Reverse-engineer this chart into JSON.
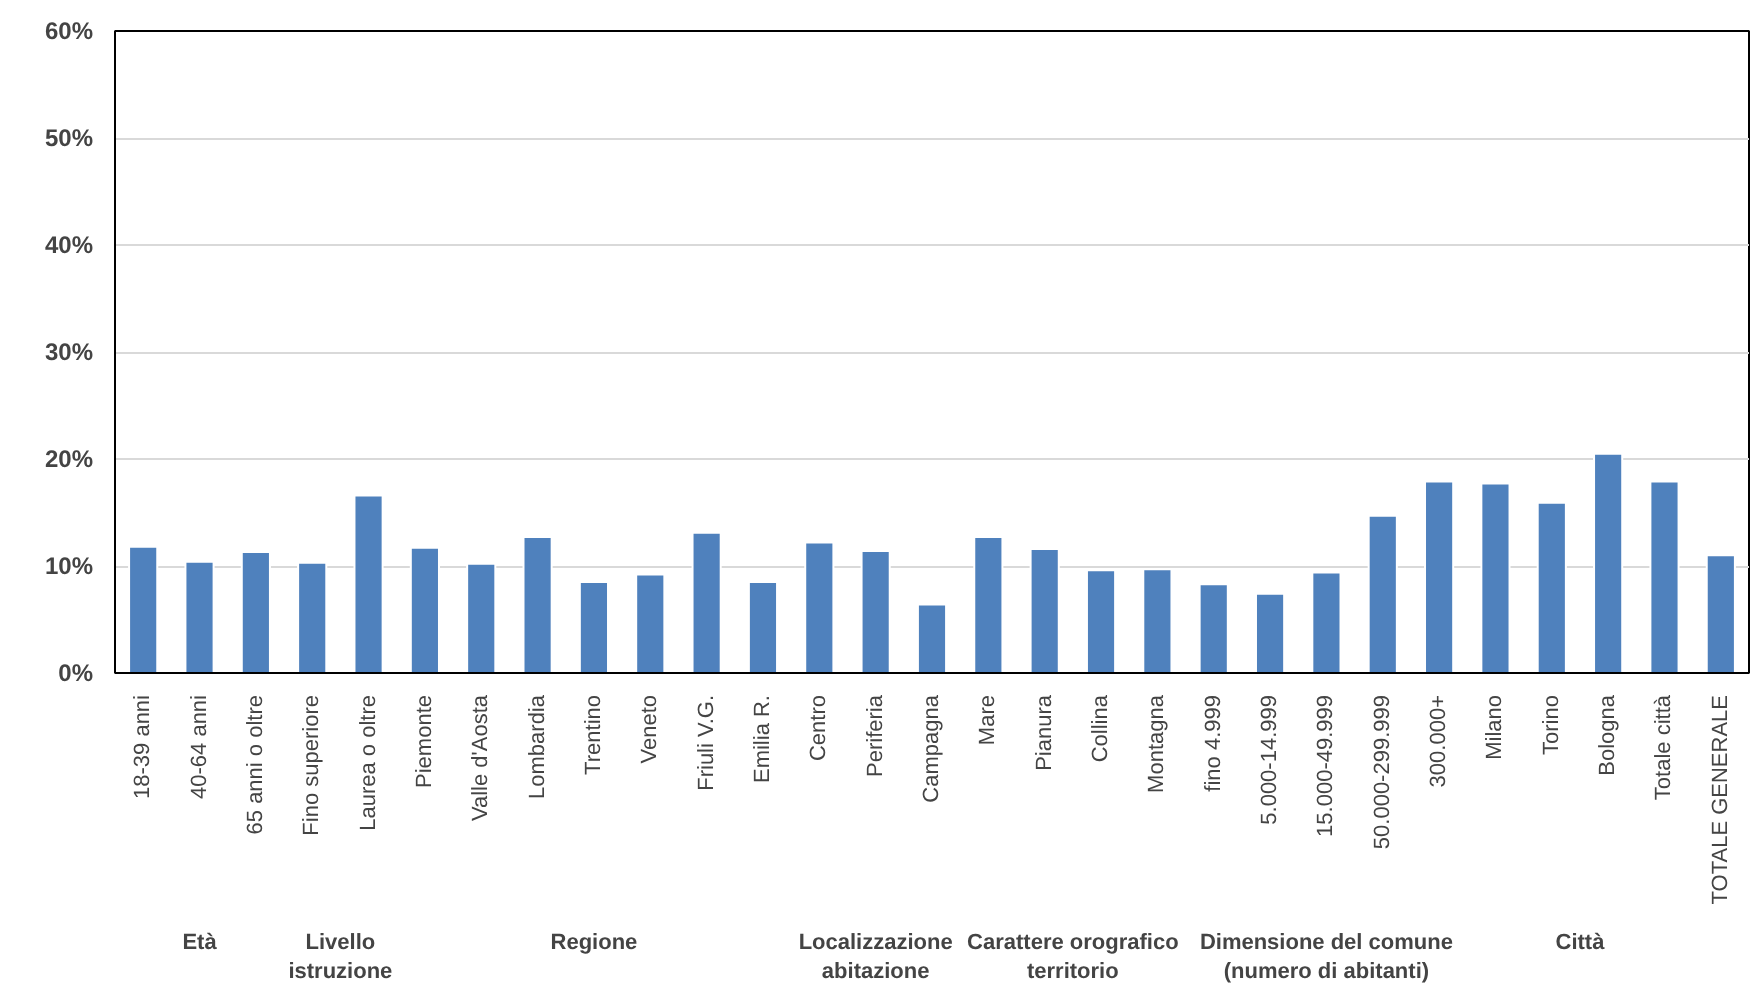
{
  "chart_data": {
    "type": "bar",
    "categories": [
      "18-39 anni",
      "40-64 anni",
      "65 anni o oltre",
      "Fino superiore",
      "Laurea o oltre",
      "Piemonte",
      "Valle d'Aosta",
      "Lombardia",
      "Trentino",
      "Veneto",
      "Friuli V.G.",
      "Emilia R.",
      "Centro",
      "Periferia",
      "Campagna",
      "Mare",
      "Pianura",
      "Collina",
      "Montagna",
      "fino 4.999",
      "5.000-14.999",
      "15.000-49.999",
      "50.000-299.999",
      "300.000+",
      "Milano",
      "Torino",
      "Bologna",
      "Totale città",
      "TOTALE GENERALE"
    ],
    "values": [
      11.8,
      10.4,
      11.3,
      10.3,
      16.6,
      11.7,
      10.2,
      12.7,
      8.5,
      9.2,
      13.1,
      8.5,
      12.2,
      11.4,
      6.4,
      12.7,
      11.6,
      9.6,
      9.7,
      8.3,
      7.4,
      9.4,
      14.7,
      17.9,
      17.7,
      15.9,
      20.5,
      17.9,
      11.0
    ],
    "color": "#4f81bd",
    "ylim": [
      0,
      60
    ],
    "yticks": [
      {
        "value": 0,
        "label": "0%"
      },
      {
        "value": 10,
        "label": "10%"
      },
      {
        "value": 20,
        "label": "20%"
      },
      {
        "value": 30,
        "label": "30%"
      },
      {
        "value": 40,
        "label": "40%"
      },
      {
        "value": 50,
        "label": "50%"
      },
      {
        "value": 60,
        "label": "60%"
      }
    ],
    "grid": "y",
    "annotations": [
      "Età",
      "Livello\nistruzione",
      "Regione",
      "Localizzazione\nabitazione",
      "Carattere orografico\nterritorio",
      "Dimensione del comune\n(numero di abitanti)",
      "Città"
    ]
  }
}
